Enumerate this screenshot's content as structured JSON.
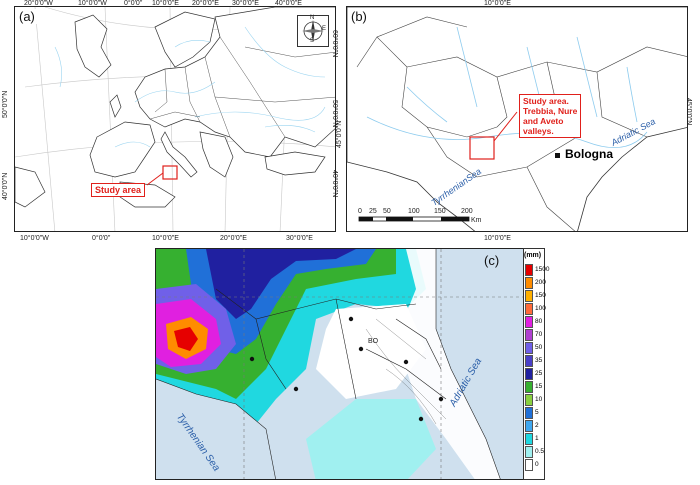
{
  "panel_a": {
    "label": "(a)",
    "top_ticks": [
      "20°0'0\"W",
      "10°0'0\"W",
      "0°0'0\"",
      "10°0'0\"E",
      "20°0'0\"E",
      "30°0'0\"E",
      "40°0'0\"E"
    ],
    "bottom_ticks": [
      "10°0'0\"W",
      "0°0'0\"",
      "10°0'0\"E",
      "20°0'0\"E",
      "30°0'0\"E"
    ],
    "left_ticks": [
      "50°0'0\"N",
      "40°0'0\"N"
    ],
    "right_ticks": [
      "60°0'0\"N",
      "50°0'0\"N",
      "40°0'0\"N"
    ],
    "study_label": "Study area",
    "compass_icon": "compass-rose-icon",
    "compass_letters": [
      "N",
      "E",
      "S"
    ]
  },
  "panel_b": {
    "label": "(b)",
    "top_tick": "10°0'0\"E",
    "bottom_tick": "10°0'0\"E",
    "left_tick": "45°0'0\"N",
    "right_tick": "45°0'0\"N",
    "study_label_lines": [
      "Study area.",
      "Trebbia, Nure",
      "and Aveto",
      "valleys."
    ],
    "city": "Bologna",
    "sea1": "Adriatic Sea",
    "sea2": "TyrrhenianSea",
    "scale_ticks": [
      "0",
      "25",
      "50",
      "100",
      "150",
      "200"
    ],
    "scale_unit": "Km"
  },
  "panel_c": {
    "label": "(c)",
    "sea1": "Adriatic Sea",
    "sea2": "Tyrrhenian Sea",
    "city_code": "BO",
    "legend_unit": "(mm)",
    "legend": [
      {
        "label": "1500",
        "color": "#e60000"
      },
      {
        "label": "200",
        "color": "#ff8c00"
      },
      {
        "label": "150",
        "color": "#ffb000"
      },
      {
        "label": "100",
        "color": "#ff6a3a"
      },
      {
        "label": "80",
        "color": "#e020e0"
      },
      {
        "label": "70",
        "color": "#b040d0"
      },
      {
        "label": "50",
        "color": "#7060e8"
      },
      {
        "label": "35",
        "color": "#4a40c8"
      },
      {
        "label": "25",
        "color": "#2020a0"
      },
      {
        "label": "15",
        "color": "#36b030"
      },
      {
        "label": "10",
        "color": "#8ad040"
      },
      {
        "label": "5",
        "color": "#2070d8"
      },
      {
        "label": "2",
        "color": "#40a8f0"
      },
      {
        "label": "1",
        "color": "#20d8e0"
      },
      {
        "label": "0.5",
        "color": "#a0f0f0"
      },
      {
        "label": "0",
        "color": "#ffffff"
      }
    ]
  }
}
